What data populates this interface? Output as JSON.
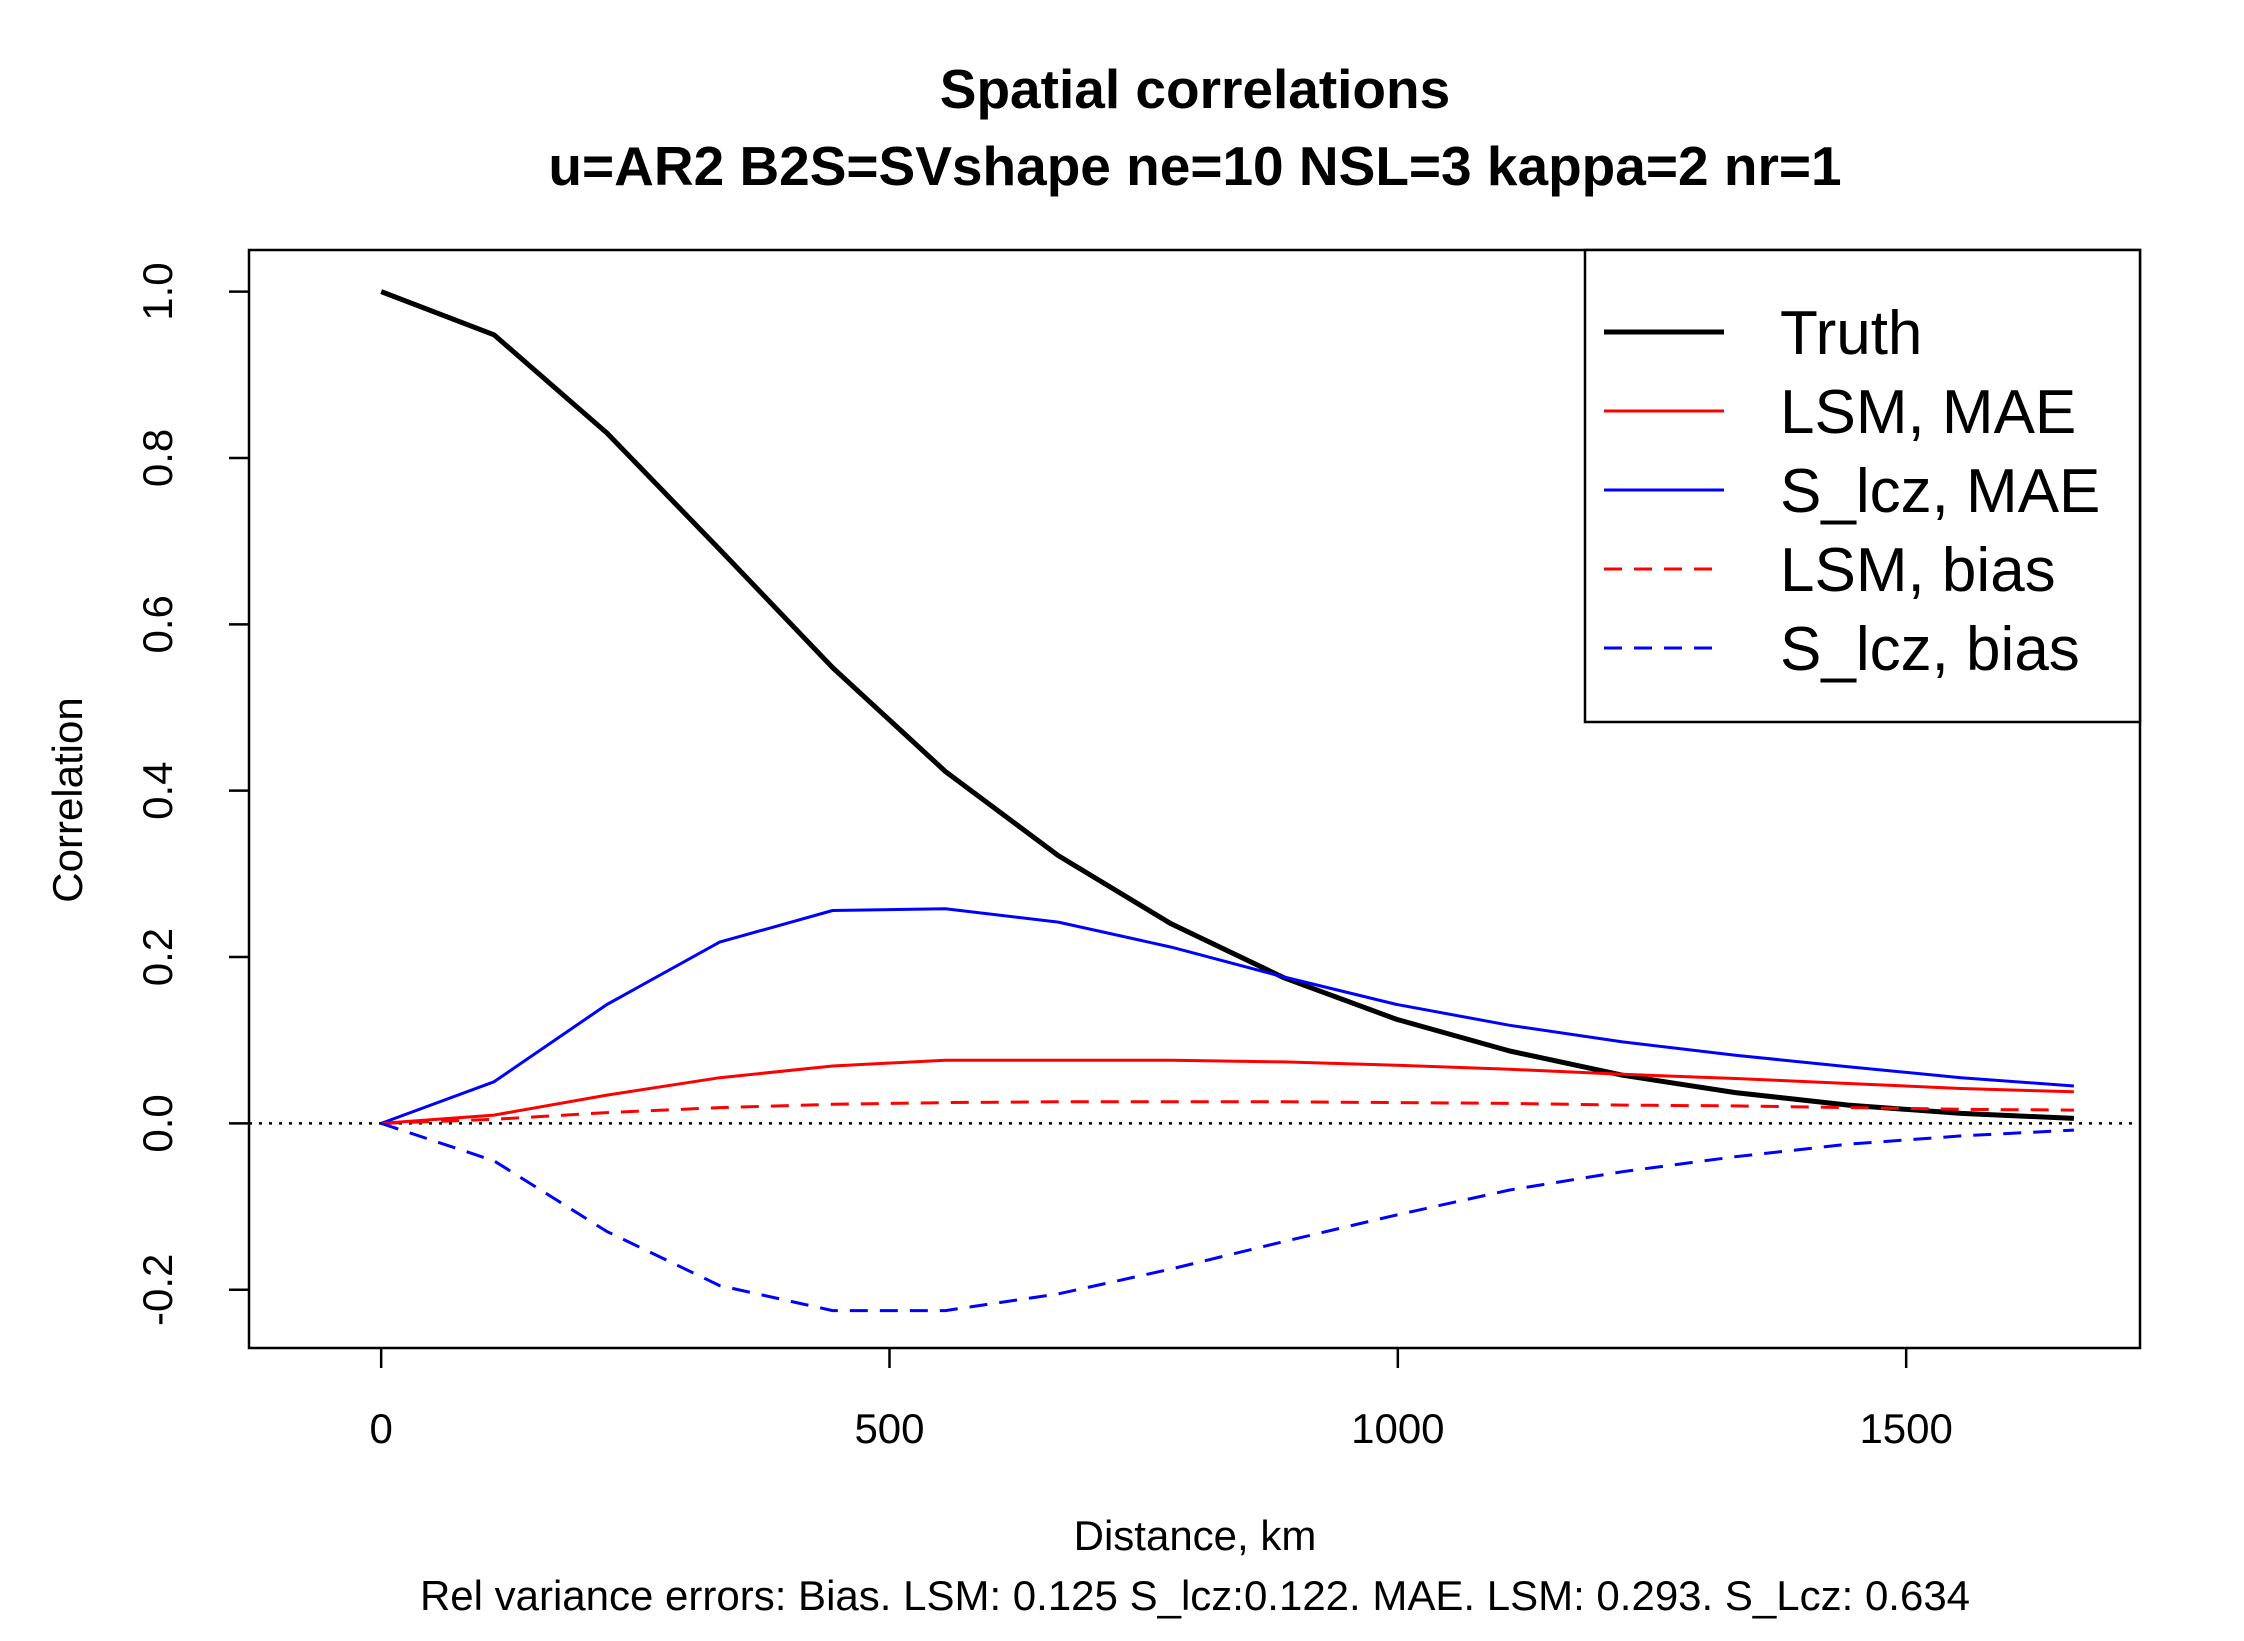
{
  "chart_data": {
    "type": "line",
    "title": "Spatial correlations",
    "subtitle": "u=AR2 B2S=SVshape ne=10 NSL=3 kappa=2 nr=1",
    "xlabel": "Distance, km",
    "ylabel": "Correlation",
    "footnote": "Rel variance errors: Bias. LSM: 0.125  S_lcz:0.122.  MAE. LSM: 0.293.  S_Lcz: 0.634",
    "xlim": [
      -130,
      1730
    ],
    "ylim": [
      -0.27,
      1.05
    ],
    "xticks": [
      0,
      500,
      1000,
      1500
    ],
    "xtick_labels": [
      "0",
      "500",
      "1000",
      "1500"
    ],
    "yticks": [
      -0.2,
      0.0,
      0.2,
      0.4,
      0.6,
      0.8,
      1.0
    ],
    "ytick_labels": [
      "-0.2",
      "0.0",
      "0.2",
      "0.4",
      "0.6",
      "0.8",
      "1.0"
    ],
    "grid": false,
    "legend_position": "top-right",
    "reference_line": {
      "y": 0.0,
      "style": "dotted",
      "color": "#000000"
    },
    "x": [
      0,
      111,
      222,
      333,
      444,
      555,
      666,
      777,
      888,
      999,
      1110,
      1221,
      1332,
      1443,
      1554,
      1665
    ],
    "series": [
      {
        "name": "Truth",
        "color": "#000000",
        "dash": "solid",
        "width": "thick",
        "values": [
          1.0,
          0.948,
          0.83,
          0.69,
          0.548,
          0.423,
          0.322,
          0.24,
          0.175,
          0.125,
          0.087,
          0.058,
          0.037,
          0.022,
          0.012,
          0.006
        ]
      },
      {
        "name": "LSM, MAE",
        "color": "#ff0000",
        "dash": "solid",
        "width": "normal",
        "values": [
          0.0,
          0.01,
          0.034,
          0.055,
          0.069,
          0.076,
          0.076,
          0.076,
          0.074,
          0.07,
          0.065,
          0.059,
          0.054,
          0.048,
          0.042,
          0.038
        ]
      },
      {
        "name": "S_lcz, MAE",
        "color": "#0000ff",
        "dash": "solid",
        "width": "normal",
        "values": [
          0.0,
          0.05,
          0.143,
          0.218,
          0.256,
          0.258,
          0.242,
          0.212,
          0.176,
          0.143,
          0.118,
          0.098,
          0.082,
          0.068,
          0.055,
          0.045
        ]
      },
      {
        "name": "LSM, bias",
        "color": "#ff0000",
        "dash": "dashed",
        "width": "normal",
        "values": [
          0.0,
          0.005,
          0.013,
          0.019,
          0.023,
          0.025,
          0.026,
          0.026,
          0.026,
          0.025,
          0.024,
          0.022,
          0.021,
          0.019,
          0.017,
          0.016
        ]
      },
      {
        "name": "S_lcz, bias",
        "color": "#0000ff",
        "dash": "dashed",
        "width": "normal",
        "values": [
          0.0,
          -0.045,
          -0.13,
          -0.195,
          -0.225,
          -0.225,
          -0.205,
          -0.175,
          -0.142,
          -0.11,
          -0.08,
          -0.058,
          -0.04,
          -0.025,
          -0.015,
          -0.008
        ]
      }
    ]
  }
}
